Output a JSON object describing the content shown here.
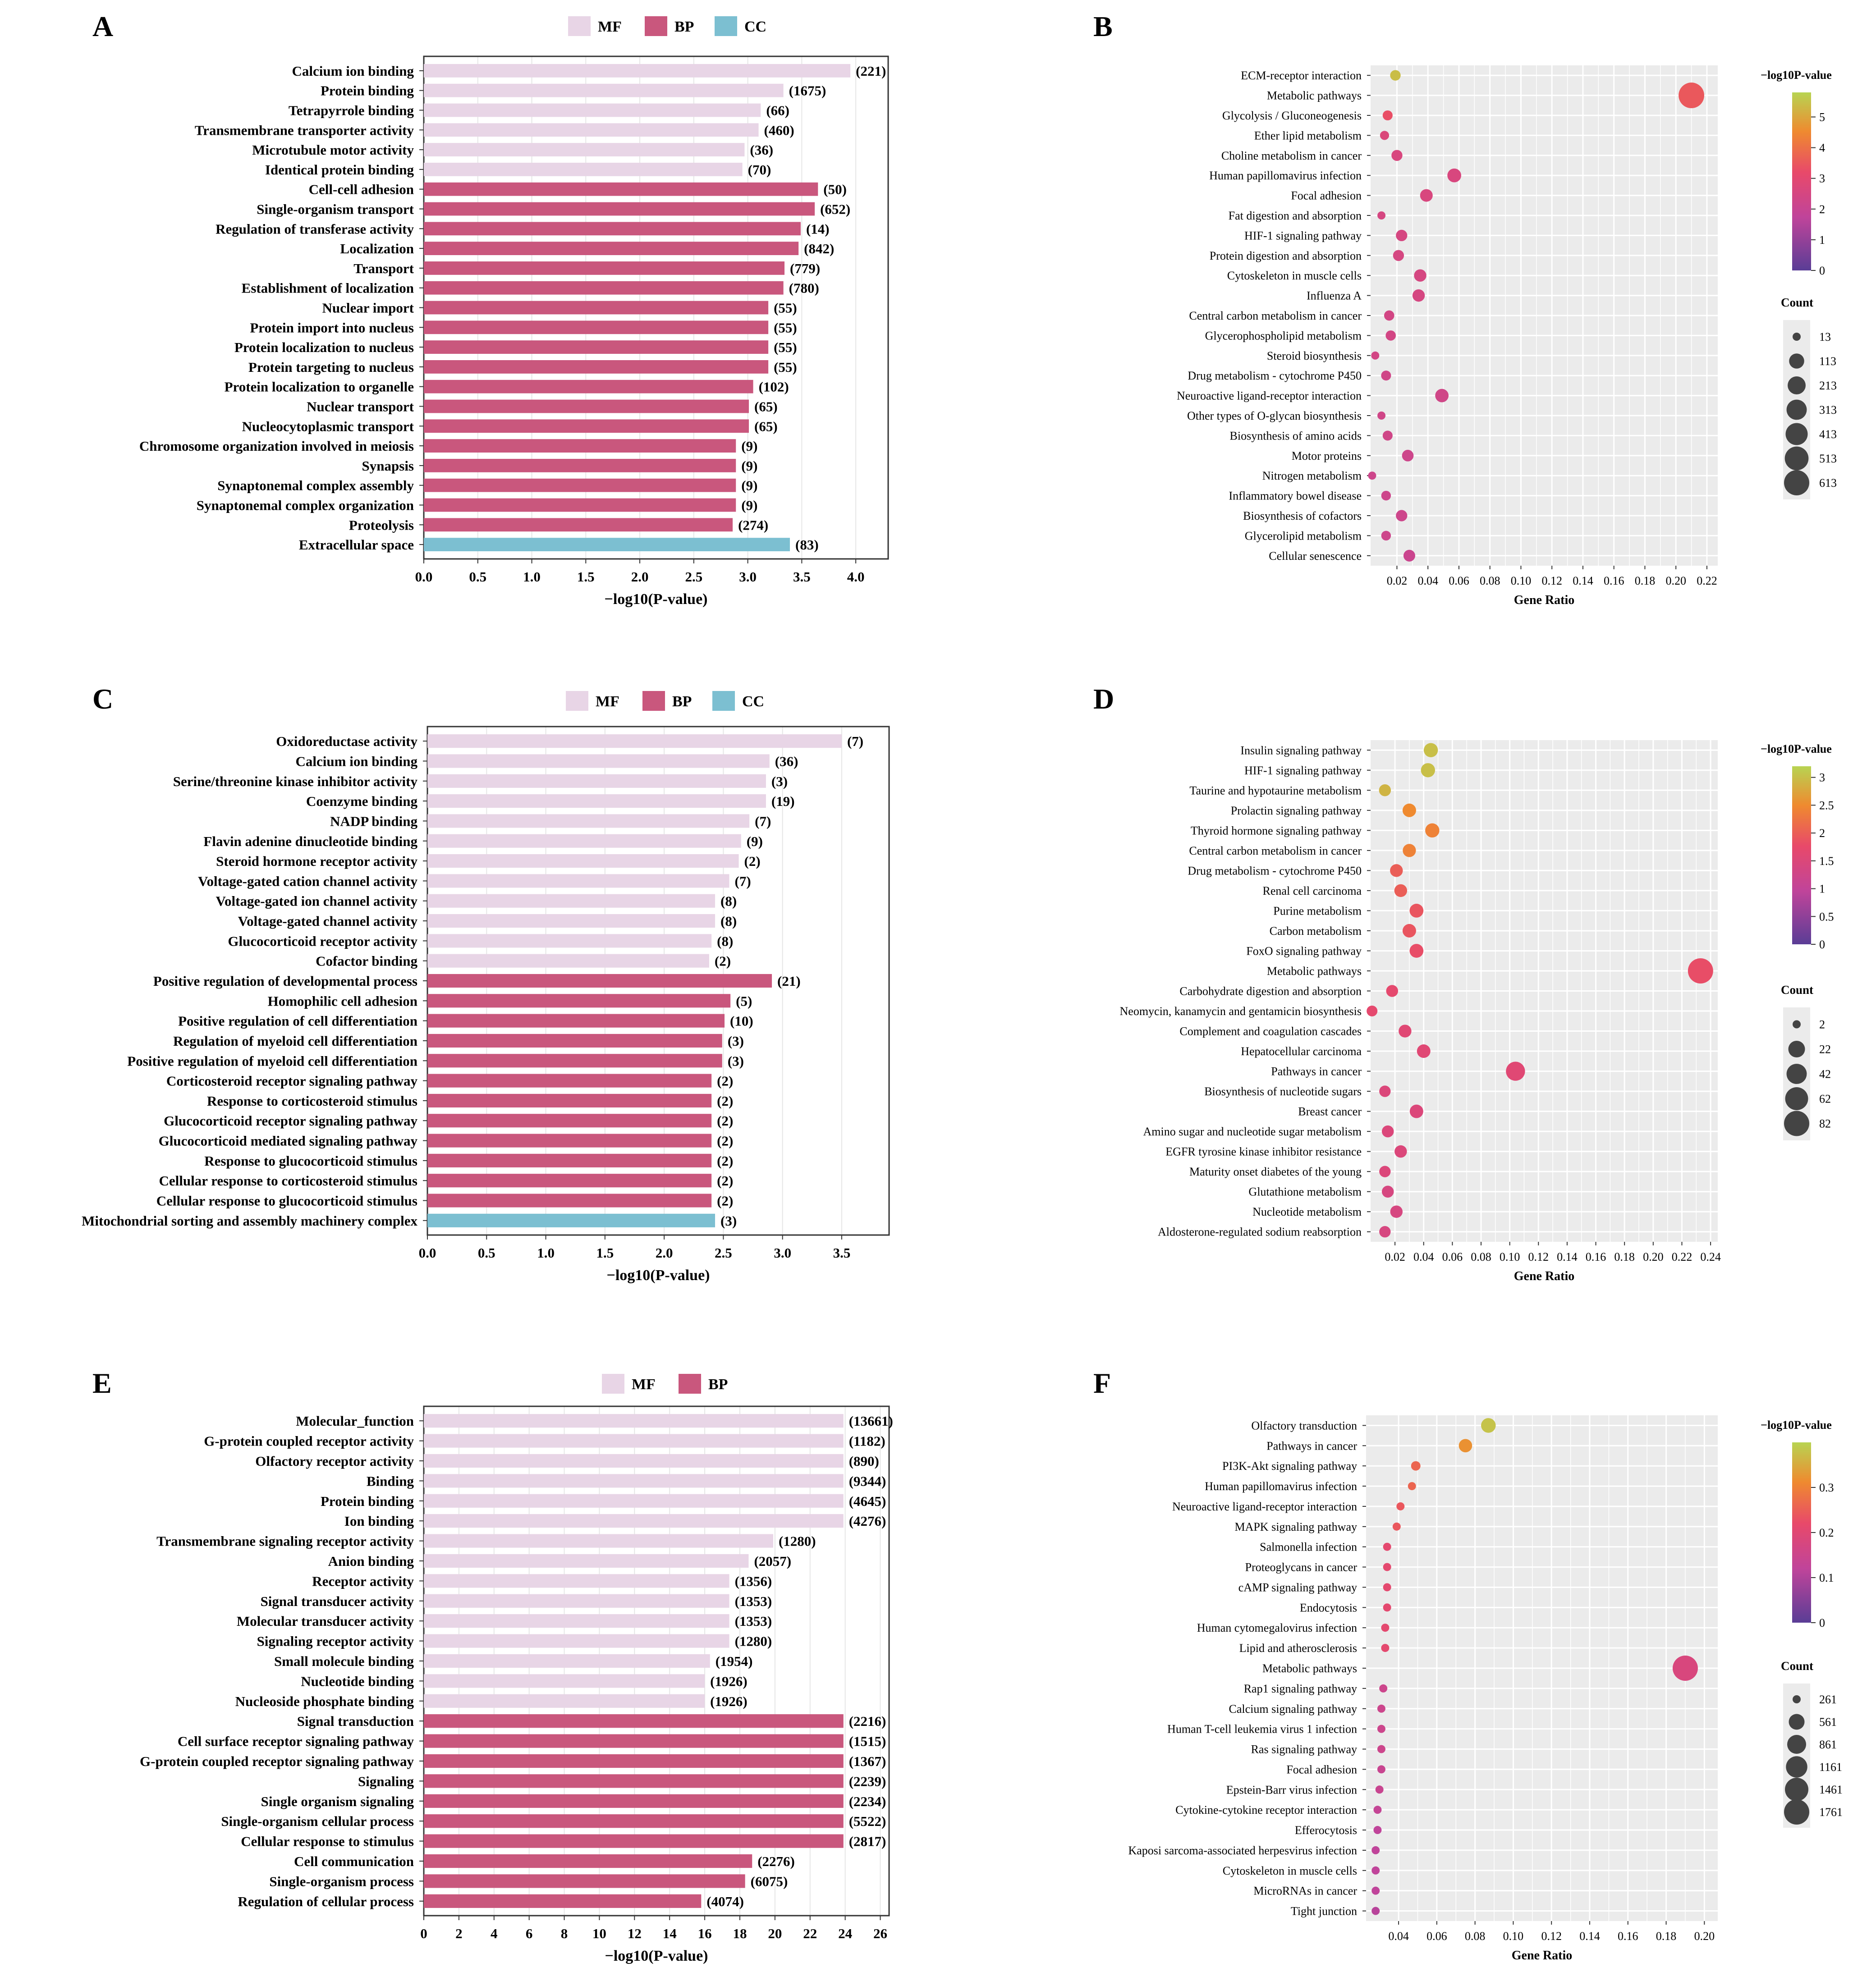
{
  "colors": {
    "MF": "#e8d5e6",
    "BP": "#c9577d",
    "CC": "#7cbfd1",
    "panel_bg": "#ebebeb",
    "grid": "#ffffff"
  },
  "chart_data": [
    {
      "panel": "A",
      "type": "bar",
      "xlabel": "−log10(P-value)",
      "xlim": [
        0,
        4.3
      ],
      "ticks": [
        0,
        0.5,
        1,
        1.5,
        2,
        2.5,
        3,
        3.5,
        4
      ],
      "tick_labels": [
        "0.0",
        "0.5",
        "1.0",
        "1.5",
        "2.0",
        "2.5",
        "3.0",
        "3.5",
        "4.0"
      ],
      "legend": [
        "MF",
        "BP",
        "CC"
      ],
      "categories": [
        "Calcium ion binding",
        "Protein binding",
        "Tetrapyrrole binding",
        "Transmembrane transporter activity",
        "Microtubule motor activity",
        "Identical protein binding",
        "Cell-cell adhesion",
        "Single-organism transport",
        "Regulation of transferase activity",
        "Localization",
        "Transport",
        "Establishment of localization",
        "Nuclear import",
        "Protein import into nucleus",
        "Protein localization to nucleus",
        "Protein targeting to nucleus",
        "Protein localization to organelle",
        "Nuclear transport",
        "Nucleocytoplasmic transport",
        "Chromosome organization involved in meiosis",
        "Synapsis",
        "Synaptonemal complex assembly",
        "Synaptonemal complex organization",
        "Proteolysis",
        "Extracellular space"
      ],
      "groups": [
        "MF",
        "MF",
        "MF",
        "MF",
        "MF",
        "MF",
        "BP",
        "BP",
        "BP",
        "BP",
        "BP",
        "BP",
        "BP",
        "BP",
        "BP",
        "BP",
        "BP",
        "BP",
        "BP",
        "BP",
        "BP",
        "BP",
        "BP",
        "BP",
        "CC"
      ],
      "values": [
        3.95,
        3.33,
        3.12,
        3.1,
        2.97,
        2.95,
        3.65,
        3.62,
        3.49,
        3.47,
        3.34,
        3.33,
        3.19,
        3.19,
        3.19,
        3.19,
        3.05,
        3.01,
        3.01,
        2.89,
        2.89,
        2.89,
        2.89,
        2.86,
        3.39
      ],
      "counts": [
        "(221)",
        "(1675)",
        "(66)",
        "(460)",
        "(36)",
        "(70)",
        "(50)",
        "(652)",
        "(14)",
        "(842)",
        "(779)",
        "(780)",
        "(55)",
        "(55)",
        "(55)",
        "(55)",
        "(102)",
        "(65)",
        "(65)",
        "(9)",
        "(9)",
        "(9)",
        "(9)",
        "(274)",
        "(83)"
      ]
    },
    {
      "panel": "B",
      "type": "scatter",
      "xlabel": "Gene Ratio",
      "xlim": [
        0.003,
        0.227
      ],
      "ticks": [
        0.02,
        0.04,
        0.06,
        0.08,
        0.1,
        0.12,
        0.14,
        0.16,
        0.18,
        0.2,
        0.22
      ],
      "tick_labels": [
        "0.02",
        "0.04",
        "0.06",
        "0.08",
        "0.10",
        "0.12",
        "0.14",
        "0.16",
        "0.18",
        "0.20",
        "0.22"
      ],
      "categories": [
        "ECM-receptor interaction",
        "Metabolic pathways",
        "Glycolysis / Gluconeogenesis",
        "Ether lipid metabolism",
        "Choline metabolism in cancer",
        "Human papillomavirus infection",
        "Focal adhesion",
        "Fat digestion and absorption",
        "HIF-1 signaling pathway",
        "Protein digestion and absorption",
        "Cytoskeleton in muscle cells",
        "Influenza A",
        "Central carbon metabolism in cancer",
        "Glycerophospholipid metabolism",
        "Steroid biosynthesis",
        "Drug metabolism - cytochrome P450",
        "Neuroactive ligand-receptor interaction",
        "Other types of O-glycan biosynthesis",
        "Biosynthesis of amino acids",
        "Motor proteins",
        "Nitrogen metabolism",
        "Inflammatory bowel disease",
        "Biosynthesis of cofactors",
        "Glycerolipid metabolism",
        "Cellular senescence"
      ],
      "x": [
        0.019,
        0.21,
        0.014,
        0.012,
        0.02,
        0.057,
        0.039,
        0.01,
        0.023,
        0.021,
        0.035,
        0.034,
        0.015,
        0.016,
        0.006,
        0.013,
        0.049,
        0.01,
        0.014,
        0.027,
        0.004,
        0.013,
        0.023,
        0.013,
        0.028
      ],
      "pvalue": [
        5.4,
        3.5,
        3.3,
        2.7,
        2.6,
        2.6,
        2.6,
        2.5,
        2.5,
        2.5,
        2.5,
        2.5,
        2.4,
        2.4,
        2.4,
        2.3,
        2.3,
        2.3,
        2.3,
        2.2,
        2.2,
        2.2,
        2.2,
        2.2,
        2.1
      ],
      "counts": [
        25,
        640,
        20,
        15,
        30,
        80,
        55,
        12,
        35,
        30,
        50,
        50,
        22,
        22,
        10,
        20,
        70,
        12,
        20,
        38,
        8,
        18,
        35,
        18,
        40
      ],
      "color_label": "−log10P-value",
      "color_range": [
        0,
        5.8
      ],
      "color_ticks": [
        0,
        1,
        2,
        3,
        4,
        5
      ],
      "color_tick_labels": [
        "0",
        "1",
        "2",
        "3",
        "4",
        "5"
      ],
      "size_label": "Count",
      "size_ticks": [
        "13",
        "113",
        "213",
        "313",
        "413",
        "513",
        "613"
      ],
      "size_values": [
        13,
        113,
        213,
        313,
        413,
        513,
        613
      ]
    },
    {
      "panel": "C",
      "type": "bar",
      "xlabel": "−log10(P-value)",
      "xlim": [
        0,
        3.9
      ],
      "ticks": [
        0,
        0.5,
        1,
        1.5,
        2,
        2.5,
        3,
        3.5
      ],
      "tick_labels": [
        "0.0",
        "0.5",
        "1.0",
        "1.5",
        "2.0",
        "2.5",
        "3.0",
        "3.5"
      ],
      "legend": [
        "MF",
        "BP",
        "CC"
      ],
      "categories": [
        "Oxidoreductase activity",
        "Calcium ion binding",
        "Serine/threonine kinase inhibitor activity",
        "Coenzyme binding",
        "NADP binding",
        "Flavin adenine dinucleotide binding",
        "Steroid hormone receptor activity",
        "Voltage-gated cation channel activity",
        "Voltage-gated ion channel activity",
        "Voltage-gated channel activity",
        "Glucocorticoid receptor activity",
        "Cofactor binding",
        "Positive regulation of developmental process",
        "Homophilic cell adhesion",
        "Positive regulation of cell differentiation",
        "Regulation of myeloid cell differentiation",
        "Positive regulation of myeloid cell differentiation",
        "Corticosteroid receptor signaling pathway",
        "Response to corticosteroid stimulus",
        "Glucocorticoid receptor signaling pathway",
        "Glucocorticoid mediated signaling pathway",
        "Response to glucocorticoid stimulus",
        "Cellular response to corticosteroid stimulus",
        "Cellular response to glucocorticoid stimulus",
        "Mitochondrial sorting and assembly machinery complex"
      ],
      "groups": [
        "MF",
        "MF",
        "MF",
        "MF",
        "MF",
        "MF",
        "MF",
        "MF",
        "MF",
        "MF",
        "MF",
        "MF",
        "BP",
        "BP",
        "BP",
        "BP",
        "BP",
        "BP",
        "BP",
        "BP",
        "BP",
        "BP",
        "BP",
        "BP",
        "CC"
      ],
      "values": [
        3.5,
        2.89,
        2.86,
        2.86,
        2.72,
        2.65,
        2.63,
        2.55,
        2.43,
        2.43,
        2.4,
        2.38,
        2.91,
        2.56,
        2.51,
        2.49,
        2.49,
        2.4,
        2.4,
        2.4,
        2.4,
        2.4,
        2.4,
        2.4,
        2.43
      ],
      "counts": [
        "(7)",
        "(36)",
        "(3)",
        "(19)",
        "(7)",
        "(9)",
        "(2)",
        "(7)",
        "(8)",
        "(8)",
        "(8)",
        "(2)",
        "(21)",
        "(5)",
        "(10)",
        "(3)",
        "(3)",
        "(2)",
        "(2)",
        "(2)",
        "(2)",
        "(2)",
        "(2)",
        "(2)",
        "(3)"
      ]
    },
    {
      "panel": "D",
      "type": "scatter",
      "xlabel": "Gene Ratio",
      "xlim": [
        0.003,
        0.245
      ],
      "ticks": [
        0.02,
        0.04,
        0.06,
        0.08,
        0.1,
        0.12,
        0.14,
        0.16,
        0.18,
        0.2,
        0.22,
        0.24
      ],
      "tick_labels": [
        "0.02",
        "0.04",
        "0.06",
        "0.08",
        "0.10",
        "0.12",
        "0.14",
        "0.16",
        "0.18",
        "0.20",
        "0.22",
        "0.24"
      ],
      "categories": [
        "Insulin signaling pathway",
        "HIF-1 signaling pathway",
        "Taurine and hypotaurine metabolism",
        "Prolactin signaling pathway",
        "Thyroid hormone signaling pathway",
        "Central carbon metabolism in cancer",
        "Drug metabolism - cytochrome P450",
        "Renal cell carcinoma",
        "Purine metabolism",
        "Carbon metabolism",
        "FoxO signaling pathway",
        "Metabolic pathways",
        "Carbohydrate digestion and absorption",
        "Neomycin, kanamycin and gentamicin biosynthesis",
        "Complement and coagulation cascades",
        "Hepatocellular carcinoma",
        "Pathways in cancer",
        "Biosynthesis of nucleotide sugars",
        "Breast cancer",
        "Amino sugar and nucleotide sugar metabolism",
        "EGFR tyrosine kinase inhibitor resistance",
        "Maturity onset diabetes of the young",
        "Glutathione metabolism",
        "Nucleotide metabolism",
        "Aldosterone-regulated sodium reabsorption"
      ],
      "x": [
        0.045,
        0.043,
        0.013,
        0.03,
        0.046,
        0.03,
        0.021,
        0.024,
        0.035,
        0.03,
        0.035,
        0.233,
        0.018,
        0.004,
        0.027,
        0.04,
        0.104,
        0.013,
        0.035,
        0.015,
        0.024,
        0.013,
        0.015,
        0.021,
        0.013
      ],
      "pvalue": [
        3.0,
        3.0,
        2.9,
        2.5,
        2.4,
        2.4,
        2.0,
        2.0,
        1.9,
        1.9,
        1.8,
        1.8,
        1.7,
        1.7,
        1.6,
        1.6,
        1.6,
        1.5,
        1.5,
        1.5,
        1.5,
        1.5,
        1.4,
        1.4,
        1.4
      ],
      "counts": [
        12,
        12,
        6,
        10,
        12,
        9,
        8,
        8,
        11,
        10,
        11,
        82,
        6,
        4,
        8,
        10,
        35,
        5,
        10,
        6,
        7,
        5,
        6,
        7,
        5
      ],
      "color_label": "−log10P-value",
      "color_range": [
        0,
        3.2
      ],
      "color_ticks": [
        0,
        0.5,
        1,
        1.5,
        2,
        2.5,
        3
      ],
      "color_tick_labels": [
        "0",
        "0.5",
        "1",
        "1.5",
        "2",
        "2.5",
        "3"
      ],
      "size_label": "Count",
      "size_ticks": [
        "2",
        "22",
        "42",
        "62",
        "82"
      ],
      "size_values": [
        2,
        22,
        42,
        62,
        82
      ]
    },
    {
      "panel": "E",
      "type": "bar",
      "xlabel": "−log10(P-value)",
      "xlim": [
        0,
        26.5
      ],
      "ticks": [
        0,
        2,
        4,
        6,
        8,
        10,
        12,
        14,
        16,
        18,
        20,
        22,
        24,
        26
      ],
      "tick_labels": [
        "0",
        "2",
        "4",
        "6",
        "8",
        "10",
        "12",
        "14",
        "16",
        "18",
        "20",
        "22",
        "24",
        "26"
      ],
      "legend": [
        "MF",
        "BP"
      ],
      "categories": [
        "Molecular_function",
        "G-protein coupled receptor activity",
        "Olfactory receptor activity",
        "Binding",
        "Protein binding",
        "Ion binding",
        "Transmembrane signaling receptor activity",
        "Anion binding",
        "Receptor activity",
        "Signal transducer activity",
        "Molecular transducer activity",
        "Signaling receptor activity",
        "Small molecule binding",
        "Nucleotide binding",
        "Nucleoside phosphate binding",
        "Signal transduction",
        "Cell surface receptor signaling pathway",
        "G-protein coupled receptor signaling pathway",
        "Signaling",
        "Single organism signaling",
        "Single-organism cellular process",
        "Cellular response to stimulus",
        "Cell communication",
        "Single-organism process",
        "Regulation of cellular process"
      ],
      "groups": [
        "MF",
        "MF",
        "MF",
        "MF",
        "MF",
        "MF",
        "MF",
        "MF",
        "MF",
        "MF",
        "MF",
        "MF",
        "MF",
        "MF",
        "MF",
        "BP",
        "BP",
        "BP",
        "BP",
        "BP",
        "BP",
        "BP",
        "BP",
        "BP",
        "BP"
      ],
      "values": [
        23.9,
        23.9,
        23.9,
        23.9,
        23.9,
        23.9,
        19.9,
        18.5,
        17.4,
        17.4,
        17.4,
        17.4,
        16.3,
        16.0,
        16.0,
        23.9,
        23.9,
        23.9,
        23.9,
        23.9,
        23.9,
        23.9,
        18.7,
        18.3,
        15.8
      ],
      "counts": [
        "(13661)",
        "(1182)",
        "(890)",
        "(9344)",
        "(4645)",
        "(4276)",
        "(1280)",
        "(2057)",
        "(1356)",
        "(1353)",
        "(1353)",
        "(1280)",
        "(1954)",
        "(1926)",
        "(1926)",
        "(2216)",
        "(1515)",
        "(1367)",
        "(2239)",
        "(2234)",
        "(5522)",
        "(2817)",
        "(2276)",
        "(6075)",
        "(4074)"
      ]
    },
    {
      "panel": "F",
      "type": "scatter",
      "xlabel": "Gene Ratio",
      "xlim": [
        0.023,
        0.207
      ],
      "ticks": [
        0.04,
        0.06,
        0.08,
        0.1,
        0.12,
        0.14,
        0.16,
        0.18,
        0.2
      ],
      "tick_labels": [
        "0.04",
        "0.06",
        "0.08",
        "0.10",
        "0.12",
        "0.14",
        "0.16",
        "0.18",
        "0.20"
      ],
      "categories": [
        "Olfactory transduction",
        "Pathways in cancer",
        "PI3K-Akt signaling pathway",
        "Human papillomavirus infection",
        "Neuroactive ligand-receptor interaction",
        "MAPK signaling pathway",
        "Salmonella infection",
        "Proteoglycans in cancer",
        "cAMP signaling pathway",
        "Endocytosis",
        "Human cytomegalovirus infection",
        "Lipid and atherosclerosis",
        "Metabolic pathways",
        "Rap1 signaling pathway",
        "Calcium signaling pathway",
        "Human T-cell leukemia virus 1 infection",
        "Ras signaling pathway",
        "Focal adhesion",
        "Epstein-Barr virus infection",
        "Cytokine-cytokine receptor interaction",
        "Efferocytosis",
        "Kaposi sarcoma-associated herpesvirus infection",
        "Cytoskeleton in muscle cells",
        "MicroRNAs in cancer",
        "Tight junction"
      ],
      "x": [
        0.087,
        0.075,
        0.049,
        0.047,
        0.041,
        0.039,
        0.034,
        0.034,
        0.034,
        0.034,
        0.033,
        0.033,
        0.19,
        0.032,
        0.031,
        0.031,
        0.031,
        0.031,
        0.03,
        0.029,
        0.029,
        0.028,
        0.028,
        0.028,
        0.028
      ],
      "pvalue": [
        0.38,
        0.32,
        0.26,
        0.26,
        0.24,
        0.24,
        0.21,
        0.21,
        0.21,
        0.21,
        0.21,
        0.21,
        0.18,
        0.15,
        0.15,
        0.15,
        0.15,
        0.14,
        0.14,
        0.13,
        0.12,
        0.12,
        0.12,
        0.12,
        0.11
      ],
      "counts": [
        480,
        400,
        270,
        260,
        230,
        220,
        200,
        200,
        200,
        200,
        190,
        190,
        1761,
        180,
        180,
        180,
        175,
        175,
        170,
        165,
        165,
        160,
        160,
        160,
        160
      ],
      "color_label": "−log10P-value",
      "color_range": [
        0,
        0.4
      ],
      "color_ticks": [
        0,
        0.1,
        0.2,
        0.3
      ],
      "color_tick_labels": [
        "0",
        "0.1",
        "0.2",
        "0.3"
      ],
      "size_label": "Count",
      "size_ticks": [
        "261",
        "561",
        "861",
        "1161",
        "1461",
        "1761"
      ],
      "size_values": [
        261,
        561,
        861,
        1161,
        1461,
        1761
      ]
    }
  ]
}
